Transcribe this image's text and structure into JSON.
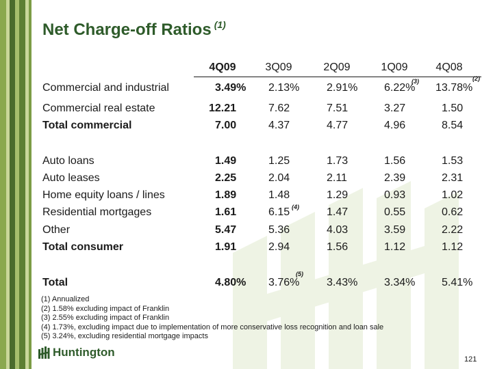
{
  "title": "Net Charge-off Ratios",
  "title_note": "(1)",
  "columns": [
    "4Q09",
    "3Q09",
    "2Q09",
    "1Q09",
    "4Q08"
  ],
  "rows": [
    {
      "label": "Commercial and industrial",
      "bold": false,
      "values": [
        "3.49%",
        "2.13%",
        "2.91%",
        "6.22%",
        "13.78%"
      ]
    },
    {
      "label": "Commercial real estate",
      "bold": false,
      "values": [
        "12.21",
        "7.62",
        "7.51",
        "3.27",
        "1.50"
      ]
    },
    {
      "label": "Total commercial",
      "bold": true,
      "values": [
        "7.00",
        "4.37",
        "4.77",
        "4.96",
        "8.54"
      ]
    },
    {
      "label": "Auto loans",
      "bold": false,
      "values": [
        "1.49",
        "1.25",
        "1.73",
        "1.56",
        "1.53"
      ]
    },
    {
      "label": "Auto leases",
      "bold": false,
      "values": [
        "2.25",
        "2.04",
        "2.11",
        "2.39",
        "2.31"
      ]
    },
    {
      "label": "Home equity loans / lines",
      "bold": false,
      "values": [
        "1.89",
        "1.48",
        "1.29",
        "0.93",
        "1.02"
      ]
    },
    {
      "label": "Residential mortgages",
      "bold": false,
      "values": [
        "1.61",
        "6.15",
        "1.47",
        "0.55",
        "0.62"
      ]
    },
    {
      "label": "Other",
      "bold": false,
      "values": [
        "5.47",
        "5.36",
        "4.03",
        "3.59",
        "2.22"
      ]
    },
    {
      "label": "Total consumer",
      "bold": true,
      "values": [
        "1.91",
        "2.94",
        "1.56",
        "1.12",
        "1.12"
      ]
    },
    {
      "label": "Total",
      "bold": true,
      "values": [
        "4.80%",
        "3.76%",
        "3.43%",
        "3.34%",
        "5.41%"
      ]
    }
  ],
  "cell_notes": {
    "ci_1q09": "(3)",
    "ci_4q08": "(2)",
    "resmort_3q09": "(4)",
    "total_3q09": "(5)"
  },
  "footnotes": [
    "(1) Annualized",
    "(2) 1.58% excluding impact of Franklin",
    "(3) 2.55% excluding impact of Franklin",
    "(4) 1.73%, excluding impact due to implementation of more conservative loss recognition and loan sale",
    "(5) 3.24%, excluding residential mortgage impacts"
  ],
  "logo_text": "Huntington",
  "page_number": "121",
  "colors": {
    "brand_green": "#2e5b2a",
    "stripe_dark": "#4a6b2c",
    "stripe_light": "#8aa84e",
    "watermark": "#eef3e4"
  }
}
